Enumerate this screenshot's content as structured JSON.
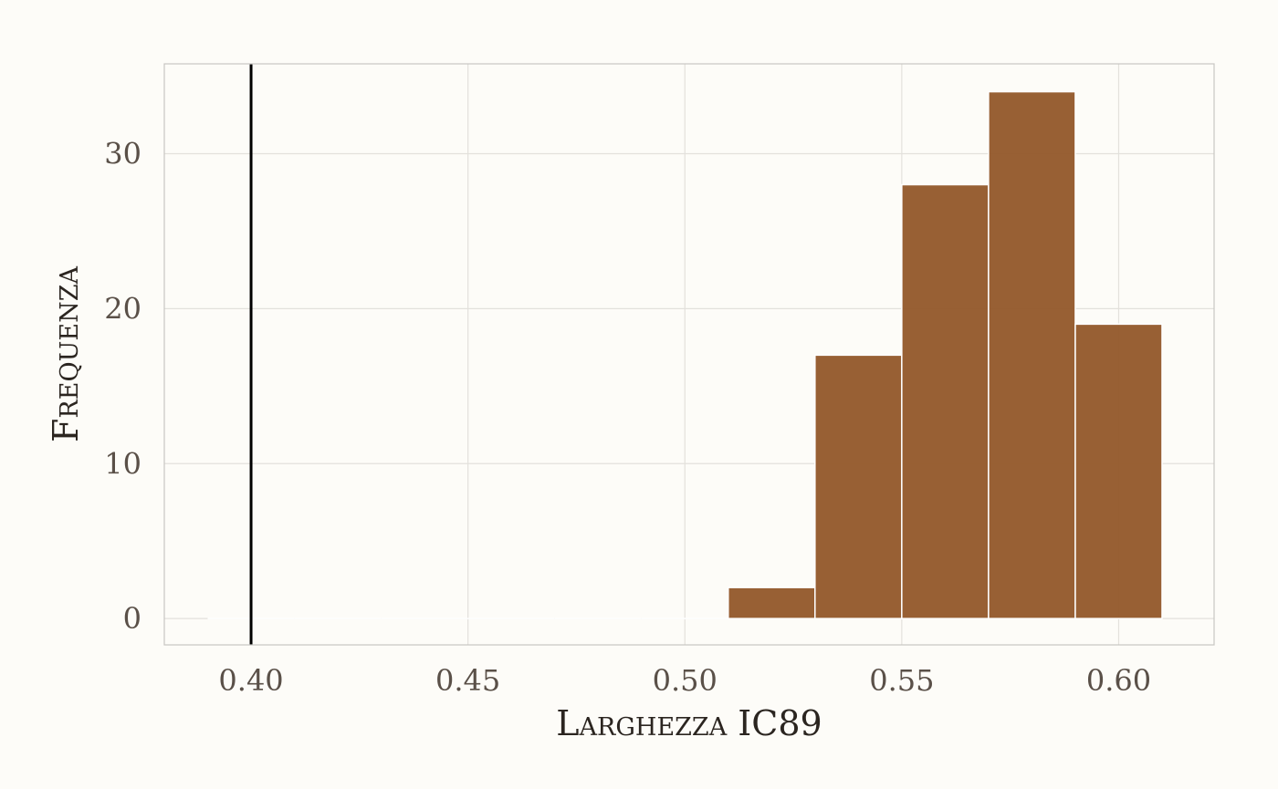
{
  "chart_data": {
    "type": "bar",
    "xlabel": "Larghezza IC89",
    "ylabel": "Frequenza",
    "xlim": [
      0.38,
      0.622
    ],
    "ylim": [
      -1.7,
      35.8
    ],
    "bin_width": 0.02,
    "bins": [
      {
        "start": 0.39,
        "end": 0.41,
        "count": 0
      },
      {
        "start": 0.41,
        "end": 0.43,
        "count": 0
      },
      {
        "start": 0.43,
        "end": 0.45,
        "count": 0
      },
      {
        "start": 0.45,
        "end": 0.47,
        "count": 0
      },
      {
        "start": 0.47,
        "end": 0.49,
        "count": 0
      },
      {
        "start": 0.49,
        "end": 0.51,
        "count": 0
      },
      {
        "start": 0.51,
        "end": 0.53,
        "count": 2
      },
      {
        "start": 0.53,
        "end": 0.55,
        "count": 17
      },
      {
        "start": 0.55,
        "end": 0.57,
        "count": 28
      },
      {
        "start": 0.57,
        "end": 0.59,
        "count": 34
      },
      {
        "start": 0.59,
        "end": 0.61,
        "count": 19
      }
    ],
    "x_ticks": [
      {
        "value": 0.4,
        "label": "0.40"
      },
      {
        "value": 0.45,
        "label": "0.45"
      },
      {
        "value": 0.5,
        "label": "0.50"
      },
      {
        "value": 0.55,
        "label": "0.55"
      },
      {
        "value": 0.6,
        "label": "0.60"
      }
    ],
    "y_ticks": [
      {
        "value": 0,
        "label": "0"
      },
      {
        "value": 10,
        "label": "10"
      },
      {
        "value": 20,
        "label": "20"
      },
      {
        "value": 30,
        "label": "30"
      }
    ],
    "reference_line_x": 0.4,
    "grid": true,
    "colors": {
      "bar_fill": "#955b2d",
      "bar_outline": "#ffffff",
      "reference_line": "#000000",
      "grid": "#e3e1dc",
      "background": "#fdfcf8",
      "panel_border": "#c8c6c2"
    }
  }
}
